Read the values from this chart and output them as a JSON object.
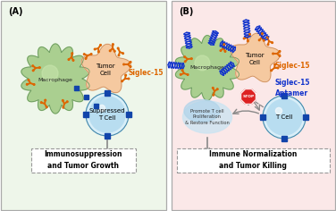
{
  "panel_A_label": "(A)",
  "panel_B_label": "(B)",
  "panel_A_bg": "#eef6ea",
  "panel_B_bg": "#fbe8e8",
  "border_color": "#aaaaaa",
  "tumor_cell_color": "#f5c9a0",
  "tumor_cell_edge": "#c8885a",
  "macrophage_color": "#aacf90",
  "macrophage_edge": "#6a9960",
  "t_cell_color": "#b8ddf0",
  "t_cell_outer": "#d8eef8",
  "t_cell_border": "#4488aa",
  "siglec_color": "#dd6600",
  "aptamer_color": "#1133cc",
  "blue_square_color": "#1144aa",
  "stop_sign_color": "#dd2222",
  "arrow_color": "#888888",
  "text_tumor": "Tumor\nCell",
  "text_macro": "Macrophage",
  "text_suppressed": "Suppressed\nT Cell",
  "text_tcell": "T Cell",
  "text_siglec": "Siglec-15",
  "text_siglec15_apt": "Siglec-15\nAptamer",
  "text_promote": "Promote T cell\nProliferation\n& Restore Function",
  "text_immuno_A": "Immunosuppression\nand Tumor Growth",
  "text_immuno_B": "Immune Normalization\nand Tumor Killing"
}
